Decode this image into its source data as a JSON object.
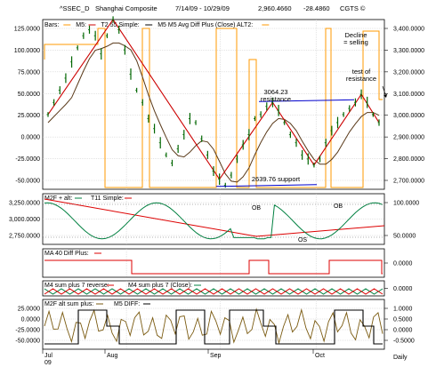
{
  "header": {
    "symbol": "^SSEC_D",
    "name": "Shanghai Composite",
    "date_range": "7/14/09 - 10/29/09",
    "last": "2,960.4660",
    "change": "-28.4860",
    "source": "CGTS ©"
  },
  "colors": {
    "price_bars": "#006600",
    "m5": "#cc0000",
    "t2": "#5a3a1a",
    "avg_diff_plus": "#ff9900",
    "trend_line": "#0000cc",
    "osc_green": "#008040",
    "osc_red": "#dd0000",
    "osc_brown": "#7a5a10",
    "osc_black": "#000000",
    "grid": "#c8c8c8"
  },
  "panels": [
    {
      "id": "main",
      "legend": [
        "Bars: ",
        "M5: ",
        "T2 55 Simple: ",
        "M5 M5 Avg Diff Plus (Close) ALT2:"
      ],
      "left_ticks": [
        "125.0000",
        "100.0000",
        "75.0000",
        "50.0000",
        "25.0000",
        "0.0000",
        "-25.0000",
        "-50.0000"
      ],
      "right_ticks": [
        "3,400.0000",
        "3,300.0000",
        "3,200.0000",
        "3,100.0000",
        "3,000.0000",
        "2,900.0000",
        "2,800.0000",
        "2,700.0000"
      ]
    },
    {
      "id": "m2f",
      "legend": [
        "M2F + alt: ",
        "T11 Simple: "
      ],
      "left_ticks": [
        "3,250.0000",
        "3,000.0000",
        "2,750.0000"
      ],
      "right_ticks": [
        "100.0000",
        "50.0000"
      ],
      "labels": [
        "OB",
        "OB",
        "OS"
      ]
    },
    {
      "id": "ma40",
      "legend": [
        "MA 40 Diff Plus: "
      ],
      "right_ticks": [
        "0.0000"
      ]
    },
    {
      "id": "m4sum",
      "legend": [
        "M4 sum plus 7 reverse: ",
        "M4 sum plus 7 (Close): "
      ],
      "right_ticks": [
        "0.0000"
      ]
    },
    {
      "id": "m2falt",
      "legend": [
        "M2F alt sum plus: ",
        "M5 DIFF: "
      ],
      "left_ticks": [
        "25.0000",
        "0.0000",
        "-25.0000",
        "-50.0000"
      ],
      "right_ticks": [
        "1.0000",
        "0.5000",
        "0.0000",
        "-0.5000"
      ]
    }
  ],
  "annotations": {
    "decline": "Decline\n= selling",
    "test_resistance": "test of\nresistance",
    "resistance": "3064.23\nresistance",
    "support": "2639.76 support"
  },
  "x_axis": {
    "labels": [
      "Jul\n09",
      "Aug",
      "Sep",
      "Oct"
    ],
    "period": "Daily"
  },
  "chart_data": {
    "type": "line",
    "title": "^SSEC_D Shanghai Composite",
    "period": "Daily",
    "x": [
      "Jul",
      "Aug",
      "Sep",
      "Oct"
    ],
    "price_close": [
      3000,
      3060,
      3120,
      3180,
      3260,
      3330,
      3390,
      3420,
      3390,
      3300,
      3390,
      3470,
      3420,
      3320,
      3200,
      3120,
      3060,
      2980,
      2930,
      2860,
      2800,
      2760,
      2830,
      2900,
      2980,
      2960,
      2880,
      2800,
      2720,
      2680,
      2650,
      2700,
      2780,
      2850,
      2900,
      2980,
      3000,
      3040,
      3060,
      3020,
      2960,
      2900,
      2860,
      2800,
      2780,
      2750,
      2780,
      2860,
      2920,
      2960,
      3000,
      3030,
      3060,
      3100,
      3060,
      3000,
      2960
    ],
    "resistance": 3064.23,
    "support": 2639.76,
    "left_ylim": [
      -62,
      130
    ],
    "right_ylim": [
      2630,
      3470
    ]
  }
}
